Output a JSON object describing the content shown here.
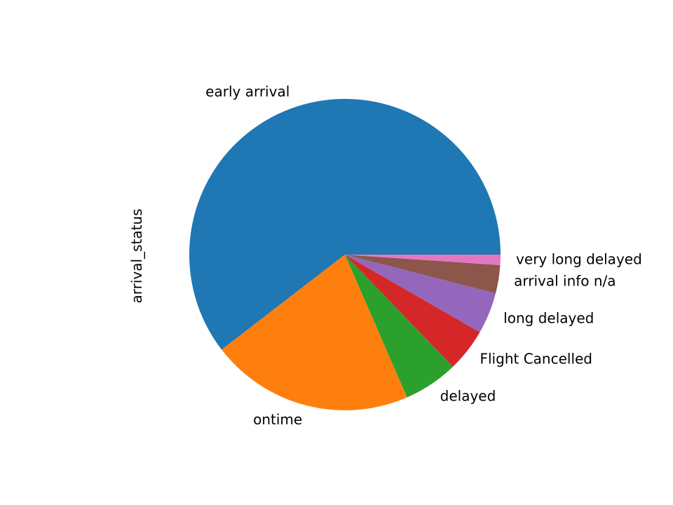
{
  "chart_data": {
    "type": "pie",
    "title": "",
    "xlabel": "",
    "ylabel": "arrival_status",
    "categories": [
      "early arrival",
      "ontime",
      "delayed",
      "Flight Cancelled",
      "long delayed",
      "arrival info n/a",
      "very long delayed"
    ],
    "values": [
      61.9,
      21.6,
      5.8,
      4.6,
      4.4,
      3.0,
      1.1
    ],
    "colors": [
      "#1f77b4",
      "#ff7f0e",
      "#2ca02c",
      "#d62728",
      "#9467bd",
      "#8c564b",
      "#e377c2"
    ],
    "start_angle_deg": 0,
    "direction": "counterclockwise",
    "legend": "none"
  }
}
